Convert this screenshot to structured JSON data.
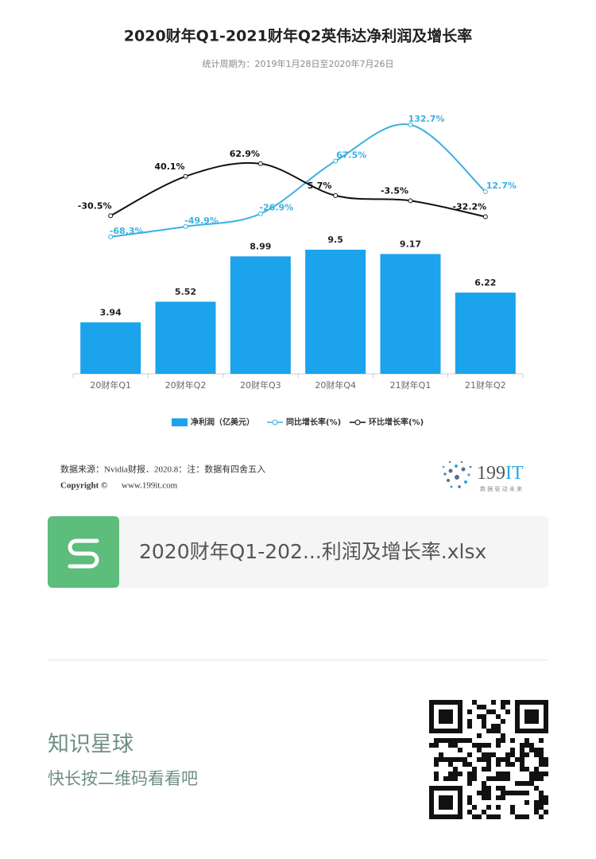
{
  "chart_data": {
    "type": "bar",
    "title": "2020财年Q1-2021财年Q2英伟达净利润及增长率",
    "subtitle": "统计周期为：2019年1月28日至2020年7月26日",
    "categories": [
      "20财年Q1",
      "20财年Q2",
      "20财年Q3",
      "20财年Q4",
      "21财年Q1",
      "21财年Q2"
    ],
    "ylim": [
      0,
      20.7
    ],
    "y2lim": [
      -314,
      171
    ],
    "series": [
      {
        "name": "净利润（亿美元）",
        "type": "bar",
        "color": "#1ba3ec",
        "values": [
          3.94,
          5.52,
          8.99,
          9.5,
          9.17,
          6.22
        ]
      },
      {
        "name": "同比增长率(%)",
        "type": "line",
        "axis": "y2",
        "color": "#3ab0e2",
        "values": [
          -68.3,
          -49.9,
          -26.9,
          67.5,
          132.7,
          12.7
        ],
        "value_labels": [
          "-68.3%",
          "-49.9%",
          "-26.9%",
          "67.5%",
          "132.7%",
          "12.7%"
        ]
      },
      {
        "name": "环比增长率(%)",
        "type": "line",
        "axis": "y2",
        "color": "#111111",
        "values": [
          -30.5,
          40.1,
          62.9,
          5.7,
          -3.5,
          -32.2
        ],
        "value_labels": [
          "-30.5%",
          "40.1%",
          "62.9%",
          "5.7%",
          "-3.5%",
          "-32.2%"
        ]
      }
    ],
    "source": "数据来源：Nvidia财报．2020.8：注：数据有四舍五入",
    "copyright": "Copyright ©",
    "website": "www.199it.com",
    "logo": {
      "number": "199",
      "suffix": "IT",
      "slogan": "数 据 驱 动 未 来"
    }
  },
  "file": {
    "name": "2020财年Q1-202...利润及增长率.xlsx"
  },
  "footer": {
    "title": "知识星球",
    "subtitle": "快长按二维码看看吧"
  }
}
